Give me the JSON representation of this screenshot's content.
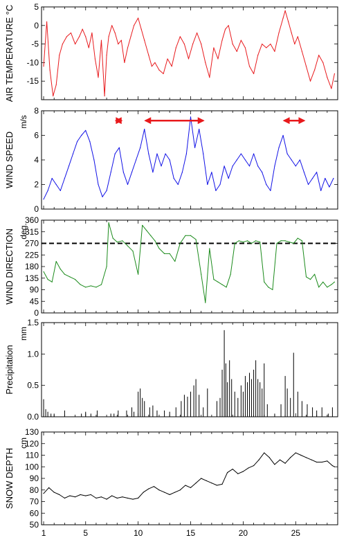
{
  "chart_data": [
    {
      "type": "line",
      "id": "air_temperature",
      "ylabel": "AIR TEMPERATURE",
      "unit": "°C",
      "color": "#e8191c",
      "xlim": [
        0.8,
        29
      ],
      "ylim": [
        -20,
        5
      ],
      "yticks": [
        -20,
        -15,
        -10,
        -5,
        0,
        5
      ],
      "ytick_labels": [
        "",
        "-15",
        "-10",
        "-5",
        "0",
        "5"
      ],
      "series": [
        {
          "x": [
            1.0,
            1.3,
            1.6,
            1.9,
            2.2,
            2.5,
            2.8,
            3.2,
            3.6,
            4.0,
            4.4,
            4.7,
            5.0,
            5.3,
            5.6,
            5.9,
            6.2,
            6.5,
            6.8,
            7.0,
            7.2,
            7.5,
            7.8,
            8.1,
            8.4,
            8.7,
            9.0,
            9.3,
            9.6,
            10.0,
            10.3,
            10.6,
            11.0,
            11.3,
            11.6,
            12.0,
            12.4,
            12.8,
            13.2,
            13.6,
            14.0,
            14.4,
            14.8,
            15.2,
            15.6,
            16.0,
            16.4,
            16.8,
            17.2,
            17.6,
            18.0,
            18.3,
            18.6,
            19.0,
            19.4,
            19.8,
            20.2,
            20.6,
            21.0,
            21.4,
            21.8,
            22.2,
            22.6,
            23.0,
            23.4,
            23.8,
            24.0,
            24.3,
            24.6,
            24.9,
            25.2,
            25.6,
            26.0,
            26.4,
            26.8,
            27.2,
            27.6,
            28.0,
            28.4,
            28.7
          ],
          "y": [
            -11,
            1,
            -12,
            -19,
            -16,
            -8,
            -5,
            -3,
            -2,
            -5,
            -3,
            -1,
            -3,
            -6,
            -2,
            -9,
            -14,
            -4,
            -19,
            -8,
            -3,
            0,
            -2,
            -5,
            -4,
            -10,
            -6,
            -3,
            0,
            2,
            -1,
            -4,
            -8,
            -11,
            -10,
            -12,
            -13,
            -9,
            -11,
            -6,
            -3,
            -5,
            -9,
            -5,
            -2,
            -5,
            -10,
            -14,
            -6,
            -9,
            -4,
            -1,
            0,
            -5,
            -7,
            -4,
            -6,
            -11,
            -13,
            -8,
            -5,
            -6,
            -5,
            -7,
            -2,
            2,
            4,
            1,
            -2,
            -5,
            -3,
            -7,
            -11,
            -15,
            -12,
            -8,
            -10,
            -14,
            -17,
            -13
          ]
        }
      ]
    },
    {
      "type": "line",
      "id": "wind_speed",
      "ylabel": "WIND  SPEED",
      "unit": "m/s",
      "color": "#1010e6",
      "xlim": [
        0.8,
        29
      ],
      "ylim": [
        0,
        8
      ],
      "yticks": [
        0,
        2,
        4,
        6,
        8
      ],
      "ytick_labels": [
        "0",
        "2",
        "4",
        "6",
        "8"
      ],
      "series": [
        {
          "x": [
            1.0,
            1.4,
            1.8,
            2.2,
            2.6,
            3.0,
            3.4,
            3.8,
            4.2,
            4.6,
            5.0,
            5.4,
            5.8,
            6.2,
            6.6,
            7.0,
            7.4,
            7.8,
            8.2,
            8.6,
            9.0,
            9.4,
            9.8,
            10.2,
            10.6,
            11.0,
            11.4,
            11.8,
            12.2,
            12.6,
            13.0,
            13.4,
            13.8,
            14.2,
            14.6,
            15.0,
            15.4,
            15.8,
            16.2,
            16.6,
            17.0,
            17.4,
            17.8,
            18.2,
            18.6,
            19.0,
            19.4,
            19.8,
            20.2,
            20.6,
            21.0,
            21.4,
            21.8,
            22.2,
            22.6,
            23.0,
            23.4,
            23.8,
            24.2,
            24.6,
            25.0,
            25.4,
            25.8,
            26.2,
            26.6,
            27.0,
            27.4,
            27.8,
            28.2,
            28.6
          ],
          "y": [
            0.8,
            1.5,
            2.5,
            2.0,
            1.5,
            2.5,
            3.5,
            4.5,
            5.5,
            6.0,
            6.4,
            5.5,
            4.0,
            2.0,
            1.0,
            1.5,
            3.0,
            4.5,
            5.0,
            3.0,
            2.0,
            3.0,
            4.0,
            5.0,
            6.5,
            4.5,
            3.0,
            4.5,
            3.5,
            4.5,
            4.0,
            2.5,
            2.0,
            3.0,
            4.5,
            7.5,
            5.0,
            6.5,
            4.5,
            2.0,
            3.0,
            1.5,
            2.0,
            3.5,
            2.5,
            3.5,
            4.0,
            4.5,
            4.0,
            3.5,
            4.5,
            3.5,
            3.0,
            2.0,
            1.5,
            3.5,
            5.0,
            6.0,
            4.5,
            4.0,
            3.5,
            4.0,
            3.0,
            2.0,
            2.5,
            3.0,
            1.5,
            2.5,
            1.8,
            2.5
          ]
        }
      ],
      "annotations": [
        {
          "type": "double-arrow",
          "x": [
            7.9,
            8.4
          ],
          "y": 7.2,
          "color": "#e8191c"
        },
        {
          "type": "double-arrow",
          "x": [
            10.7,
            16.2
          ],
          "y": 7.2,
          "color": "#e8191c"
        },
        {
          "type": "double-arrow",
          "x": [
            23.9,
            25.8
          ],
          "y": 7.2,
          "color": "#e8191c"
        }
      ]
    },
    {
      "type": "line",
      "id": "wind_direction",
      "ylabel": "WIND DIRECTION",
      "unit": "deg.",
      "color": "#1a8a1a",
      "xlim": [
        0.8,
        29
      ],
      "ylim": [
        0,
        360
      ],
      "yticks": [
        0,
        45,
        90,
        135,
        180,
        225,
        270,
        315,
        360
      ],
      "ytick_labels": [
        "0",
        "45",
        "90",
        "135",
        "180",
        "225",
        "270",
        "315",
        "360"
      ],
      "reference_line": {
        "y": 270,
        "style": "dashed",
        "color": "#000000"
      },
      "series": [
        {
          "x": [
            1.0,
            1.4,
            1.8,
            2.2,
            2.6,
            3.0,
            3.5,
            4.0,
            4.5,
            5.0,
            5.5,
            6.0,
            6.5,
            7.0,
            7.2,
            7.6,
            8.0,
            8.5,
            9.0,
            9.5,
            10.0,
            10.4,
            10.8,
            11.2,
            11.6,
            12.0,
            12.5,
            13.0,
            13.5,
            14.0,
            14.5,
            15.0,
            15.5,
            16.0,
            16.4,
            16.8,
            17.2,
            17.6,
            18.0,
            18.4,
            18.8,
            19.2,
            19.6,
            20.0,
            20.4,
            20.8,
            21.2,
            21.6,
            22.0,
            22.4,
            22.8,
            23.2,
            23.6,
            24.0,
            24.4,
            24.8,
            25.2,
            25.6,
            26.0,
            26.4,
            26.8,
            27.2,
            27.6,
            28.0,
            28.4,
            28.7
          ],
          "y": [
            160,
            130,
            120,
            200,
            170,
            150,
            140,
            130,
            110,
            100,
            105,
            100,
            110,
            180,
            350,
            290,
            275,
            280,
            260,
            240,
            150,
            340,
            320,
            300,
            280,
            250,
            230,
            230,
            200,
            270,
            300,
            300,
            285,
            150,
            40,
            250,
            130,
            120,
            110,
            100,
            150,
            270,
            280,
            275,
            280,
            270,
            280,
            275,
            120,
            100,
            90,
            270,
            280,
            280,
            275,
            270,
            290,
            280,
            140,
            130,
            150,
            100,
            120,
            100,
            110,
            120
          ]
        }
      ]
    },
    {
      "type": "bar",
      "id": "precipitation",
      "ylabel": "Precipitation",
      "unit": "mm",
      "color": "#000000",
      "xlim": [
        0.8,
        29
      ],
      "ylim": [
        0,
        1.5
      ],
      "yticks": [
        0,
        0.5,
        1.0,
        1.5
      ],
      "ytick_labels": [
        "0.0",
        "0.5",
        "1.0",
        "1.5"
      ],
      "series": [
        {
          "x": [
            1.0,
            1.2,
            1.4,
            1.7,
            2.0,
            3.0,
            4.6,
            5.0,
            5.5,
            6.1,
            7.4,
            7.7,
            8.1,
            8.9,
            9.4,
            9.6,
            10.0,
            10.2,
            10.4,
            10.6,
            11.1,
            11.4,
            11.8,
            12.5,
            13.0,
            13.6,
            14.1,
            14.4,
            14.7,
            15.0,
            15.3,
            15.5,
            15.8,
            16.2,
            16.6,
            17.5,
            17.8,
            18.0,
            18.2,
            18.35,
            18.5,
            18.7,
            18.9,
            19.2,
            19.5,
            19.8,
            20.0,
            20.2,
            20.4,
            20.6,
            20.8,
            21.0,
            21.2,
            21.4,
            21.6,
            21.8,
            22.0,
            22.3,
            23.0,
            23.6,
            24.0,
            24.2,
            24.5,
            24.8,
            25.2,
            25.6,
            26.1,
            26.6,
            27.0,
            27.5,
            28.1,
            28.5
          ],
          "y": [
            0.28,
            0.12,
            0.08,
            0.05,
            0.05,
            0.1,
            0.05,
            0.08,
            0.05,
            0.1,
            0.05,
            0.05,
            0.1,
            0.1,
            0.15,
            0.08,
            0.4,
            0.45,
            0.3,
            0.25,
            0.15,
            0.18,
            0.1,
            0.1,
            0.08,
            0.15,
            0.25,
            0.35,
            0.32,
            0.4,
            0.5,
            0.6,
            0.35,
            0.15,
            0.45,
            0.25,
            0.3,
            0.75,
            1.38,
            0.85,
            0.55,
            0.9,
            0.6,
            0.4,
            0.3,
            0.5,
            0.4,
            0.65,
            0.55,
            0.7,
            0.6,
            0.75,
            0.9,
            0.6,
            0.55,
            0.45,
            0.85,
            0.2,
            0.05,
            0.2,
            0.65,
            0.45,
            0.3,
            1.02,
            0.4,
            0.25,
            0.2,
            0.15,
            0.1,
            0.15,
            0.05,
            0.15
          ]
        }
      ]
    },
    {
      "type": "line",
      "id": "snow_depth",
      "ylabel": "SNOW DEPTH",
      "unit": "cm",
      "color": "#000000",
      "xlim": [
        0.8,
        29
      ],
      "ylim": [
        50,
        130
      ],
      "yticks": [
        50,
        60,
        70,
        80,
        90,
        100,
        110,
        120,
        130
      ],
      "ytick_labels": [
        "50",
        "60",
        "70",
        "80",
        "90",
        "100",
        "110",
        "120",
        "130"
      ],
      "xticks": [
        1,
        5,
        10,
        15,
        20,
        25
      ],
      "xtick_labels": [
        "1",
        "5",
        "10",
        "15",
        "20",
        "25"
      ],
      "series": [
        {
          "x": [
            1.0,
            1.5,
            2.0,
            2.5,
            3.0,
            3.5,
            4.0,
            4.5,
            5.0,
            5.5,
            6.0,
            6.5,
            7.0,
            7.5,
            8.0,
            8.5,
            9.0,
            9.5,
            10.0,
            10.5,
            11.0,
            11.5,
            12.0,
            12.5,
            13.0,
            13.5,
            14.0,
            14.5,
            15.0,
            15.5,
            16.0,
            16.5,
            17.0,
            17.5,
            18.0,
            18.5,
            19.0,
            19.5,
            20.0,
            20.5,
            21.0,
            21.5,
            22.0,
            22.5,
            23.0,
            23.5,
            24.0,
            24.5,
            25.0,
            25.5,
            26.0,
            26.5,
            27.0,
            27.5,
            28.0,
            28.5,
            28.7
          ],
          "y": [
            77,
            82,
            78,
            76,
            73,
            75,
            74,
            76,
            75,
            76,
            73,
            74,
            72,
            75,
            73,
            74,
            73,
            72,
            73,
            78,
            81,
            83,
            80,
            78,
            76,
            78,
            80,
            84,
            82,
            86,
            90,
            88,
            86,
            84,
            85,
            95,
            98,
            94,
            96,
            99,
            101,
            106,
            112,
            108,
            102,
            106,
            103,
            108,
            112,
            110,
            108,
            106,
            104,
            104,
            105,
            101,
            100
          ]
        }
      ]
    }
  ]
}
